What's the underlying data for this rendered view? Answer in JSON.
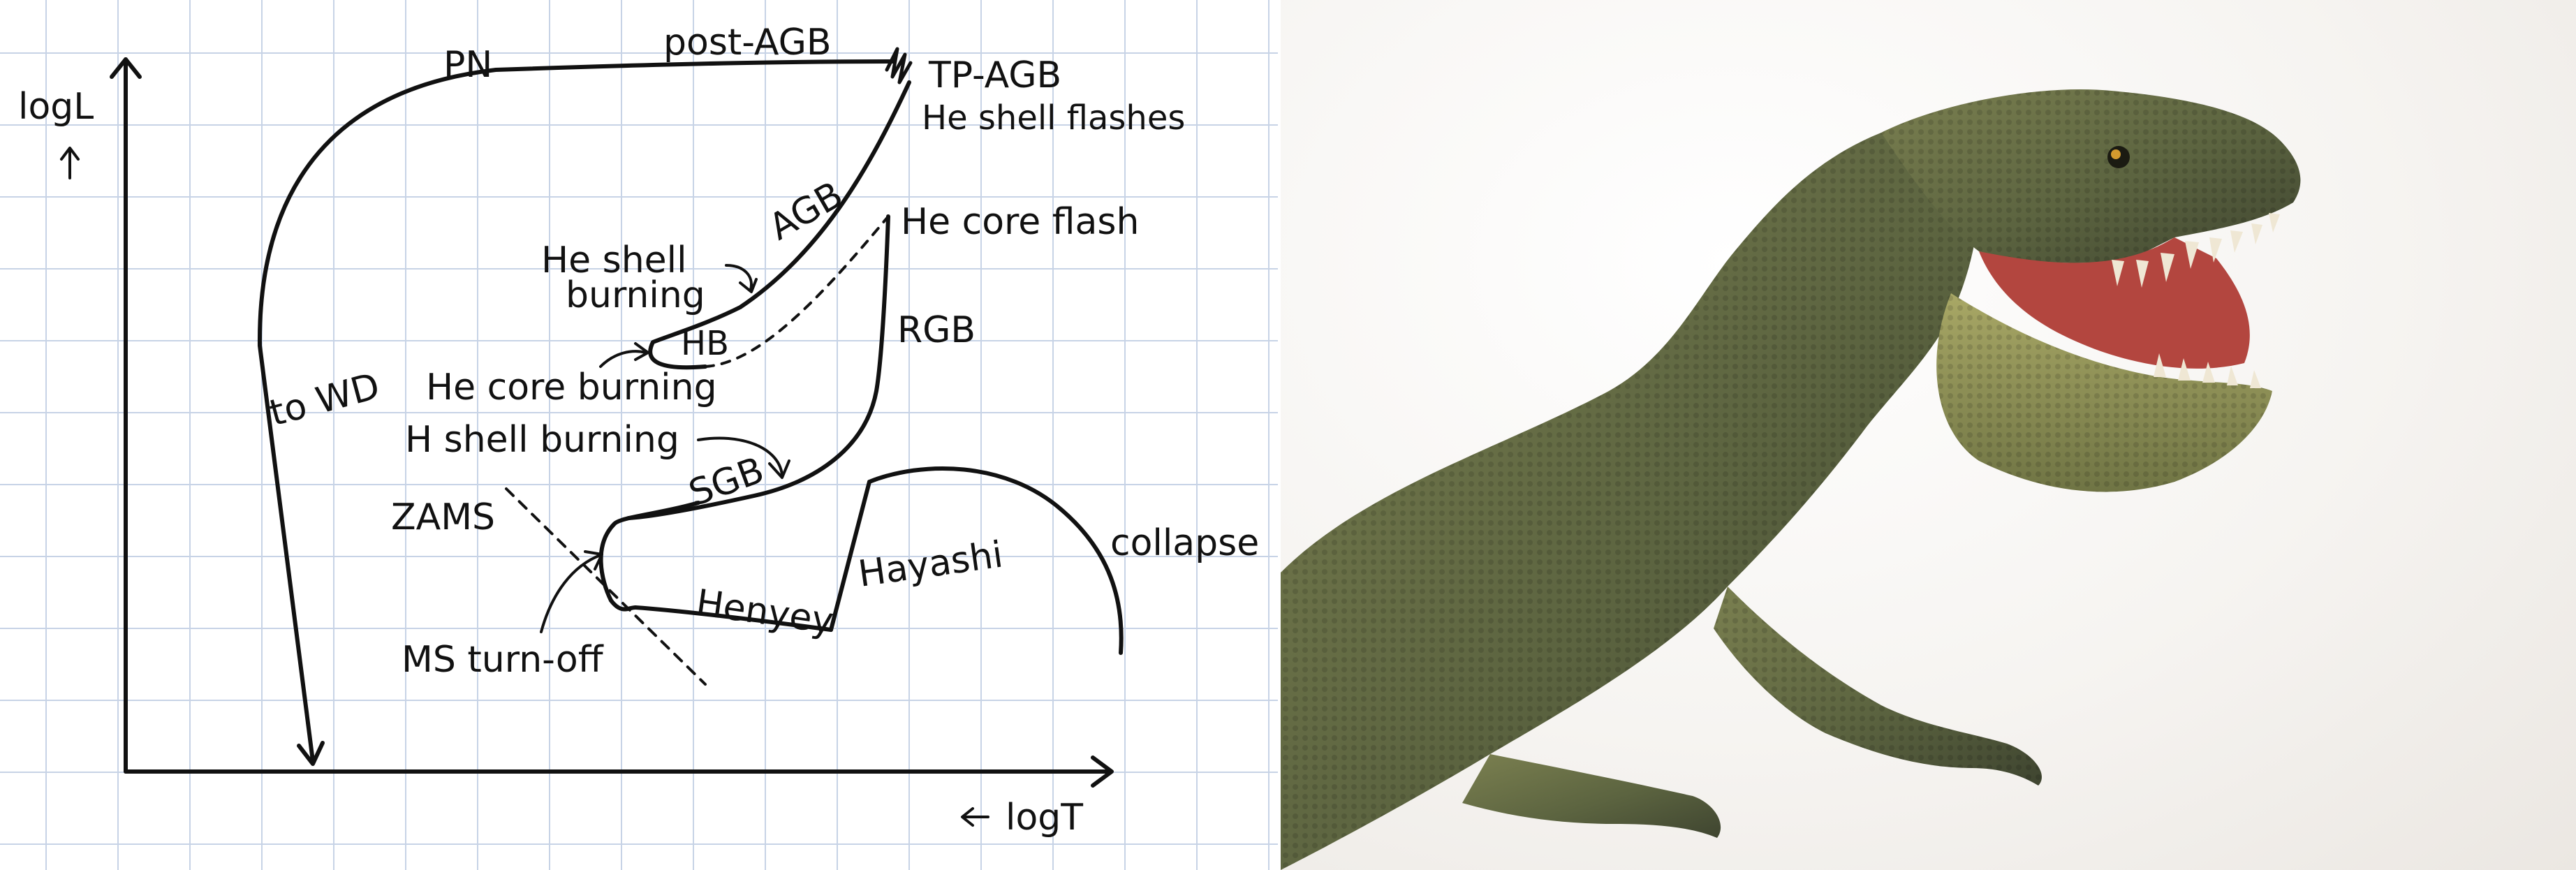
{
  "diagram": {
    "axes": {
      "y_label": "logL",
      "y_arrow": "↑",
      "x_label": "logT",
      "x_arrow": "←"
    },
    "labels": {
      "pn": "PN",
      "post_agb": "post-AGB",
      "tp_agb": "TP-AGB",
      "he_shell_flashes": "He shell flashes",
      "agb": "AGB",
      "he_core_flash": "He core flash",
      "he_shell_burning_1": "He shell",
      "he_shell_burning_2": "burning",
      "hb": "HB",
      "rgb": "RGB",
      "he_core_burning": "He core burning",
      "to_wd": "to WD",
      "h_shell_burning": "H shell burning",
      "sgb": "SGB",
      "zams": "ZAMS",
      "hayashi": "Hayashi",
      "collapse": "collapse",
      "henyey": "Henyey",
      "ms_turn_off": "MS turn-off"
    },
    "colors": {
      "ink": "#111111",
      "grid": "#c7d3e6"
    }
  },
  "photo": {
    "subject_icon": "t-rex-figure",
    "colors": {
      "skin_dark": "#4a5236",
      "skin_mid": "#7b8050",
      "skin_light": "#a9a866",
      "mouth": "#b3463f",
      "teeth": "#efe7d4"
    }
  }
}
